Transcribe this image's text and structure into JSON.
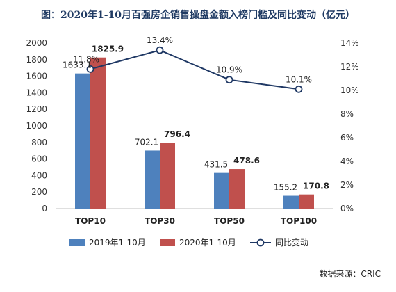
{
  "chart_data": {
    "type": "bar",
    "title": "图：2020年1-10月百强房企销售操盘金额入榜门槛及同比变动（亿元）",
    "categories": [
      "TOP10",
      "TOP30",
      "TOP50",
      "TOP100"
    ],
    "series": [
      {
        "name": "2019年1-10月",
        "values": [
          1633.1,
          702.1,
          431.5,
          155.2
        ],
        "color": "#4e81bd",
        "labels": [
          "1633.1",
          "702.1",
          "431.5",
          "155.2"
        ]
      },
      {
        "name": "2020年1-10月",
        "values": [
          1825.9,
          796.4,
          478.6,
          170.8
        ],
        "color": "#c0504d",
        "labels": [
          "1825.9",
          "796.4",
          "478.6",
          "170.8"
        ]
      }
    ],
    "line_series": {
      "name": "同比变动",
      "values": [
        11.8,
        13.4,
        10.9,
        10.1
      ],
      "labels": [
        "11.8%",
        "13.4%",
        "10.9%",
        "10.1%"
      ],
      "color": "#1f3864",
      "axis": "right"
    },
    "y_left": {
      "min": 0,
      "max": 2000,
      "ticks": [
        "0",
        "200",
        "400",
        "600",
        "800",
        "1000",
        "1200",
        "1400",
        "1600",
        "1800",
        "2000"
      ]
    },
    "y_right": {
      "min": 0,
      "max": 14,
      "ticks": [
        "0%",
        "2%",
        "4%",
        "6%",
        "8%",
        "10%",
        "12%",
        "14%"
      ]
    },
    "grid": false,
    "legend_position": "bottom",
    "source": "数据来源：CRIC"
  }
}
